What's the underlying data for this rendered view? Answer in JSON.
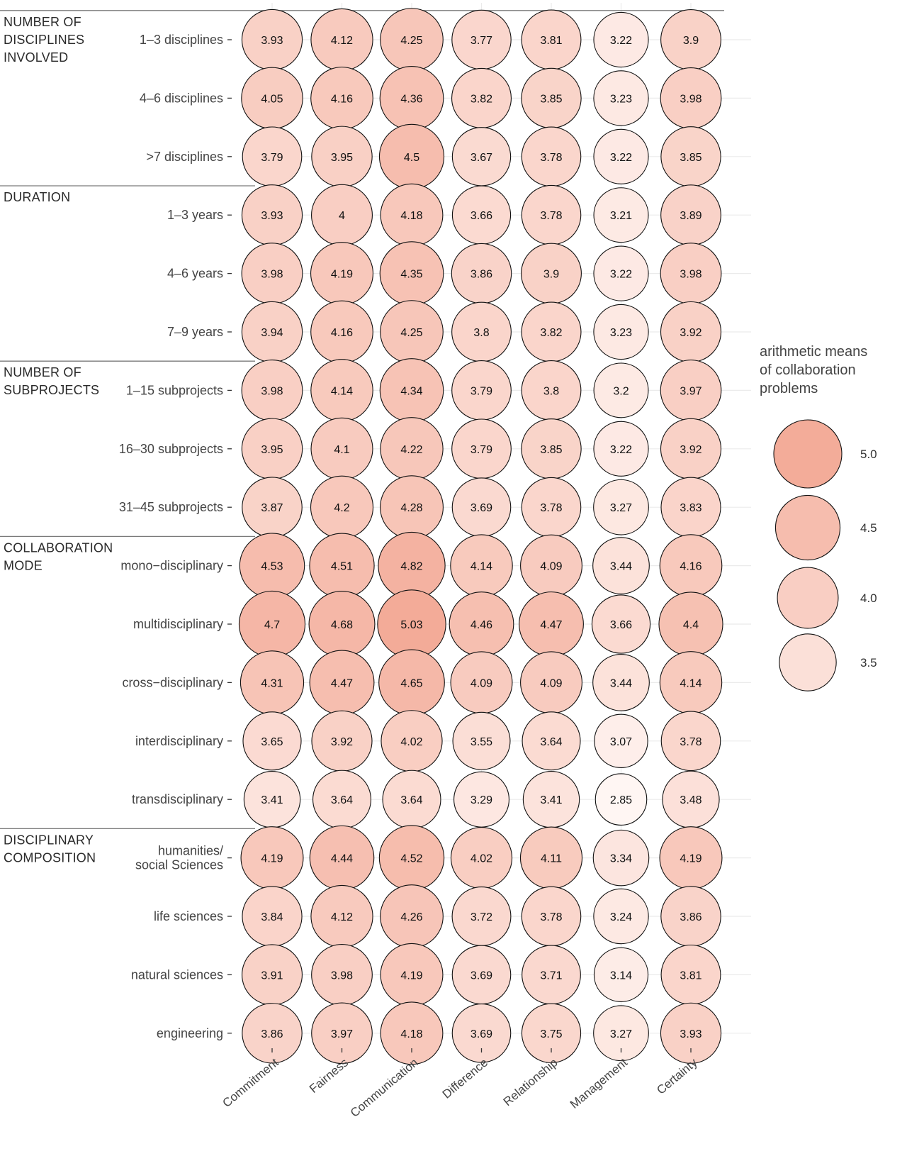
{
  "chart_data": {
    "type": "bubble-matrix",
    "columns": [
      "Commitment",
      "Fairness",
      "Communication",
      "Difference",
      "Relationship",
      "Management",
      "Certainty"
    ],
    "groups": [
      {
        "title_lines": [
          "NUMBER OF",
          "DISCIPLINES",
          "INVOLVED"
        ],
        "rows": [
          {
            "label_lines": [
              "1–3 disciplines"
            ],
            "values": [
              3.93,
              4.12,
              4.25,
              3.77,
              3.81,
              3.22,
              3.9
            ]
          },
          {
            "label_lines": [
              "4–6 disciplines"
            ],
            "values": [
              4.05,
              4.16,
              4.36,
              3.82,
              3.85,
              3.23,
              3.98
            ]
          },
          {
            "label_lines": [
              ">7 disciplines"
            ],
            "values": [
              3.79,
              3.95,
              4.5,
              3.67,
              3.78,
              3.22,
              3.85
            ]
          }
        ]
      },
      {
        "title_lines": [
          "DURATION"
        ],
        "rows": [
          {
            "label_lines": [
              "1–3 years"
            ],
            "values": [
              3.93,
              4,
              4.18,
              3.66,
              3.78,
              3.21,
              3.89
            ]
          },
          {
            "label_lines": [
              "4–6 years"
            ],
            "values": [
              3.98,
              4.19,
              4.35,
              3.86,
              3.9,
              3.22,
              3.98
            ]
          },
          {
            "label_lines": [
              "7–9 years"
            ],
            "values": [
              3.94,
              4.16,
              4.25,
              3.8,
              3.82,
              3.23,
              3.92
            ]
          }
        ]
      },
      {
        "title_lines": [
          "NUMBER OF",
          "SUBPROJECTS"
        ],
        "rows": [
          {
            "label_lines": [
              "1–15 subprojects"
            ],
            "values": [
              3.98,
              4.14,
              4.34,
              3.79,
              3.8,
              3.2,
              3.97
            ]
          },
          {
            "label_lines": [
              "16–30 subprojects"
            ],
            "values": [
              3.95,
              4.1,
              4.22,
              3.79,
              3.85,
              3.22,
              3.92
            ]
          },
          {
            "label_lines": [
              "31–45 subprojects"
            ],
            "values": [
              3.87,
              4.2,
              4.28,
              3.69,
              3.78,
              3.27,
              3.83
            ]
          }
        ]
      },
      {
        "title_lines": [
          "COLLABORATION",
          "MODE"
        ],
        "rows": [
          {
            "label_lines": [
              "mono−disciplinary"
            ],
            "values": [
              4.53,
              4.51,
              4.82,
              4.14,
              4.09,
              3.44,
              4.16
            ]
          },
          {
            "label_lines": [
              "multidisciplinary"
            ],
            "values": [
              4.7,
              4.68,
              5.03,
              4.46,
              4.47,
              3.66,
              4.4
            ]
          },
          {
            "label_lines": [
              "cross−disciplinary"
            ],
            "values": [
              4.31,
              4.47,
              4.65,
              4.09,
              4.09,
              3.44,
              4.14
            ]
          },
          {
            "label_lines": [
              "interdisciplinary"
            ],
            "values": [
              3.65,
              3.92,
              4.02,
              3.55,
              3.64,
              3.07,
              3.78
            ]
          },
          {
            "label_lines": [
              "transdisciplinary"
            ],
            "values": [
              3.41,
              3.64,
              3.64,
              3.29,
              3.41,
              2.85,
              3.48
            ]
          }
        ]
      },
      {
        "title_lines": [
          "DISCIPLINARY",
          "COMPOSITION"
        ],
        "rows": [
          {
            "label_lines": [
              "humanities/",
              "social Sciences"
            ],
            "values": [
              4.19,
              4.44,
              4.52,
              4.02,
              4.11,
              3.34,
              4.19
            ]
          },
          {
            "label_lines": [
              "life sciences"
            ],
            "values": [
              3.84,
              4.12,
              4.26,
              3.72,
              3.78,
              3.24,
              3.86
            ]
          },
          {
            "label_lines": [
              "natural sciences"
            ],
            "values": [
              3.91,
              3.98,
              4.19,
              3.69,
              3.71,
              3.14,
              3.81
            ]
          },
          {
            "label_lines": [
              "engineering"
            ],
            "values": [
              3.86,
              3.97,
              4.18,
              3.69,
              3.75,
              3.27,
              3.93
            ]
          }
        ]
      }
    ],
    "legend": {
      "title_lines": [
        "arithmetic means",
        "of collaboration",
        "problems"
      ],
      "values": [
        5.0,
        4.5,
        4.0,
        3.5
      ],
      "labels": [
        "5.0",
        "4.5",
        "4.0",
        "3.5"
      ]
    },
    "color_scale": {
      "low_value": 2.85,
      "high_value": 5.03,
      "low_color": "#fff6f3",
      "high_color": "#f3ab98"
    },
    "bubble_stroke": "#111111",
    "grid_color": "#ebebeb",
    "separator_color": "#7a7a7a"
  }
}
